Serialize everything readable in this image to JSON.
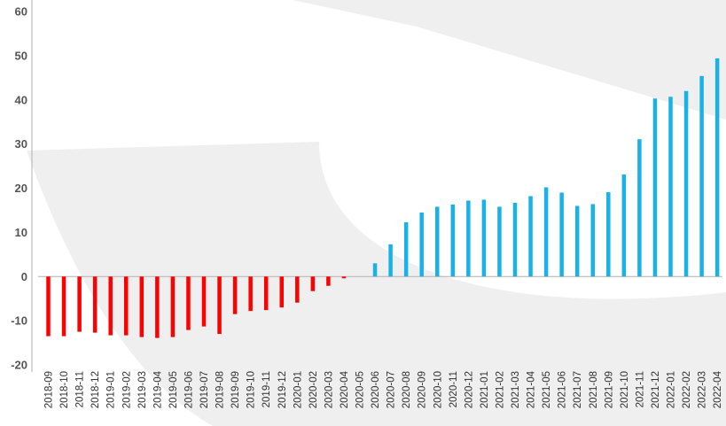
{
  "chart_data": {
    "type": "bar",
    "title": "",
    "xlabel": "",
    "ylabel": "",
    "ylim": [
      -20,
      60
    ],
    "yticks": [
      -20,
      -10,
      0,
      10,
      20,
      30,
      40,
      50,
      60
    ],
    "grid": false,
    "legend": "none",
    "colors": {
      "negative": "#ff0000",
      "positive": "#19b2e8",
      "axis": "#b0b0b0",
      "watermark": "#efefef"
    },
    "categories": [
      "2018-09",
      "2018-10",
      "2018-11",
      "2018-12",
      "2019-01",
      "2019-02",
      "2019-03",
      "2019-04",
      "2019-05",
      "2019-06",
      "2019-07",
      "2019-08",
      "2019-09",
      "2019-10",
      "2019-11",
      "2019-12",
      "2020-01",
      "2020-02",
      "2020-03",
      "2020-04",
      "2020-05",
      "2020-06",
      "2020-07",
      "2020-08",
      "2020-09",
      "2020-10",
      "2020-11",
      "2020-12",
      "2021-01",
      "2021-02",
      "2021-03",
      "2021-04",
      "2021-05",
      "2021-06",
      "2021-07",
      "2021-08",
      "2021-09",
      "2021-10",
      "2021-11",
      "2021-12",
      "2022-01",
      "2022-02",
      "2022-03",
      "2022-04"
    ],
    "values": [
      -13.5,
      -13.5,
      -12.5,
      -12.7,
      -13.3,
      -13.3,
      -13.7,
      -13.9,
      -13.7,
      -12.1,
      -11.3,
      -13,
      -8.5,
      -7.8,
      -7.6,
      -7,
      -5.9,
      -3.3,
      -2.1,
      -0.4,
      0,
      3,
      7.3,
      12.3,
      14.5,
      15.8,
      16.3,
      17.2,
      17.4,
      15.8,
      16.7,
      18.2,
      20.2,
      19,
      16,
      16.4,
      19.1,
      23.1,
      31.1,
      40.3,
      40.7,
      42,
      45.4,
      49.4
    ]
  }
}
